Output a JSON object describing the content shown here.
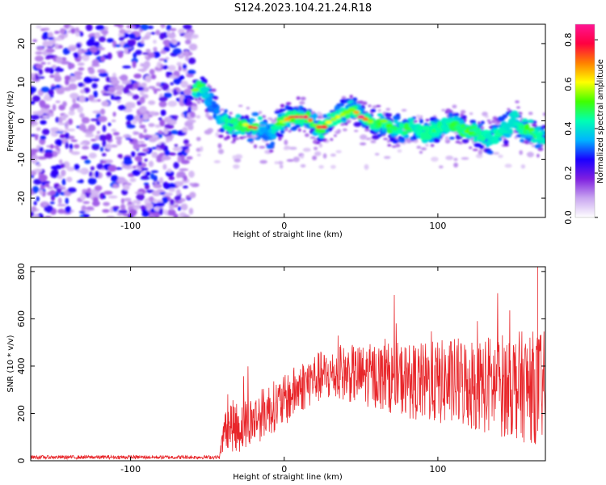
{
  "title": "S124.2023.104.21.24.R18",
  "chart_data": [
    {
      "type": "heatmap",
      "xlabel": "Height of straight line (km)",
      "ylabel": "Frequency (Hz)",
      "xlim": [
        -165,
        170
      ],
      "ylim": [
        -25,
        25
      ],
      "xticks": [
        -100,
        0,
        100
      ],
      "yticks": [
        -20,
        -10,
        0,
        10,
        20
      ],
      "colorbar": {
        "label": "Normalized spectral amplitude",
        "ticks": [
          "0.0",
          "0.2",
          "0.4",
          "0.6",
          "0.8"
        ],
        "range": [
          0,
          0.87
        ],
        "colors": [
          "#ffffff",
          "#c9a6f0",
          "#7f1fe0",
          "#1a00ff",
          "#00b4ff",
          "#00ffb4",
          "#40ff00",
          "#ffff00",
          "#ff8000",
          "#ff0040",
          "#ff1493"
        ]
      },
      "ridge": {
        "description_values": "track center frequency (Hz) vs height (km)",
        "x": [
          -58,
          -55,
          -50,
          -45,
          -40,
          -35,
          -30,
          -25,
          -20,
          -15,
          -12,
          -8,
          -5,
          0,
          5,
          10,
          15,
          20,
          25,
          30,
          35,
          40,
          45,
          50,
          55,
          60,
          65,
          70,
          75,
          80,
          85,
          90,
          95,
          100,
          105,
          110,
          115,
          120,
          125,
          130,
          135,
          140,
          145,
          150,
          155,
          160,
          165,
          170
        ],
        "y": [
          8,
          9,
          6,
          3,
          0,
          -1,
          -1,
          -1,
          -2,
          -1,
          -4,
          -3,
          -1,
          0,
          1,
          1,
          1,
          -1,
          -2,
          0,
          1,
          2,
          3,
          1,
          0,
          -1,
          0,
          -2,
          -2,
          -2,
          -1,
          -3,
          -3,
          -2,
          -1,
          -1,
          -2,
          -3,
          -3,
          -4,
          -5,
          -3,
          -2,
          1,
          -2,
          -2,
          -4,
          -5
        ],
        "peak_amplitude": [
          0.55,
          0.5,
          0.35,
          0.3,
          0.4,
          0.5,
          0.45,
          0.6,
          0.85,
          0.4,
          0.3,
          0.35,
          0.5,
          0.6,
          0.75,
          0.85,
          0.8,
          0.55,
          0.85,
          0.55,
          0.6,
          0.55,
          0.55,
          0.85,
          0.6,
          0.45,
          0.55,
          0.5,
          0.45,
          0.5,
          0.4,
          0.45,
          0.45,
          0.5,
          0.4,
          0.5,
          0.45,
          0.55,
          0.45,
          0.45,
          0.4,
          0.45,
          0.4,
          0.4,
          0.45,
          0.55,
          0.45,
          0.4
        ]
      },
      "noise_region_x": [
        -165,
        -58
      ]
    },
    {
      "type": "line",
      "xlabel": "Height of straight line (km)",
      "ylabel": "SNR (10 * v/v)",
      "xlim": [
        -165,
        170
      ],
      "ylim": [
        0,
        820
      ],
      "xticks": [
        -100,
        0,
        100
      ],
      "yticks": [
        0,
        200,
        400,
        600,
        800
      ],
      "series": [
        {
          "color": "#e8262a",
          "envelope_x": [
            -165,
            -42,
            -41,
            -38,
            -35,
            -30,
            -20,
            -10,
            0,
            10,
            20,
            30,
            40,
            50,
            60,
            70,
            80,
            90,
            100,
            110,
            120,
            130,
            140,
            150,
            160,
            170
          ],
          "envelope_mean": [
            15,
            15,
            60,
            150,
            150,
            140,
            170,
            220,
            250,
            310,
            350,
            360,
            370,
            360,
            360,
            350,
            340,
            330,
            330,
            330,
            330,
            320,
            320,
            320,
            310,
            310
          ],
          "envelope_spread": [
            8,
            8,
            40,
            90,
            110,
            110,
            110,
            110,
            110,
            110,
            110,
            110,
            120,
            130,
            140,
            150,
            160,
            170,
            180,
            190,
            200,
            210,
            220,
            230,
            240,
            240
          ],
          "peak_max": 820
        }
      ]
    }
  ]
}
